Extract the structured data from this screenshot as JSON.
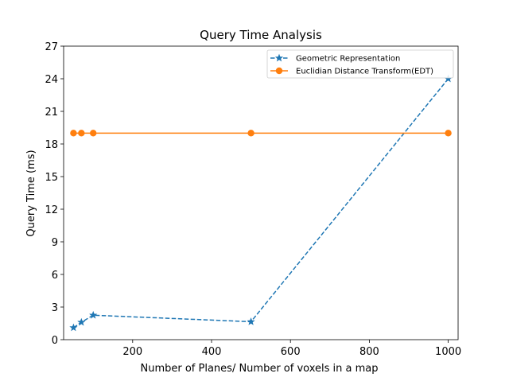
{
  "chart_data": {
    "type": "line",
    "title": "Query Time Analysis",
    "xlabel": "Number of Planes/ Number of voxels in a map",
    "ylabel": "Query Time (ms)",
    "xlim": [
      25,
      1025
    ],
    "ylim": [
      0,
      27
    ],
    "xticks": [
      200,
      400,
      600,
      800,
      1000
    ],
    "yticks": [
      0,
      3,
      6,
      9,
      12,
      15,
      18,
      21,
      24,
      27
    ],
    "grid": false,
    "legend_position": "upper-right",
    "series": [
      {
        "name": "Geometric Representation",
        "color": "#1f77b4",
        "line_style": "dashed",
        "marker": "star",
        "x": [
          50,
          70,
          100,
          500,
          1000
        ],
        "y": [
          1.1,
          1.6,
          2.25,
          1.65,
          24.0
        ]
      },
      {
        "name": "Euclidian Distance Transform(EDT)",
        "color": "#ff7f0e",
        "line_style": "solid",
        "marker": "circle",
        "x": [
          50,
          70,
          100,
          500,
          1000
        ],
        "y": [
          19.0,
          19.0,
          19.0,
          19.0,
          19.0
        ]
      }
    ]
  }
}
